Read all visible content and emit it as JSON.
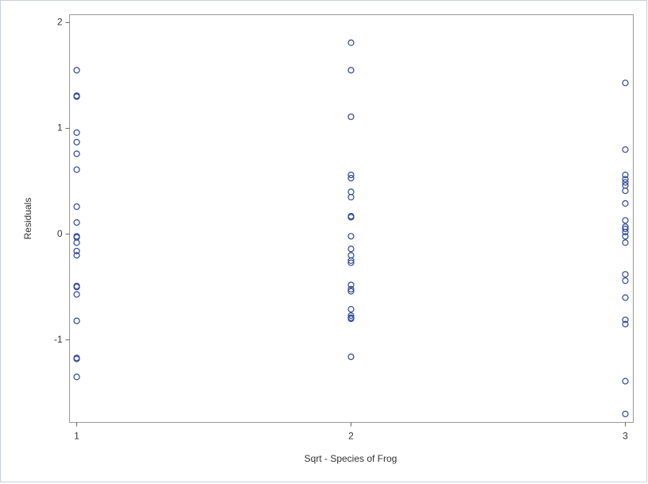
{
  "chart_data": {
    "type": "scatter",
    "x_label": "Sqrt - Species of Frog",
    "y_label": "Residuals",
    "color": "#2d4a9c",
    "x": [
      1,
      1,
      1,
      1,
      1,
      1,
      1,
      1,
      1,
      1,
      1,
      1,
      1,
      1,
      1,
      1,
      1,
      1,
      1,
      1,
      1,
      2,
      2,
      2,
      2,
      2,
      2,
      2,
      2,
      2,
      2,
      2,
      2,
      2,
      2,
      2,
      2,
      2,
      2,
      2,
      2,
      2,
      2,
      3,
      3,
      3,
      3,
      3,
      3,
      3,
      3,
      3,
      3,
      3,
      3,
      3,
      3,
      3,
      3,
      3,
      3,
      3,
      3,
      3
    ],
    "values": [
      1.55,
      1.31,
      1.3,
      0.96,
      0.87,
      0.76,
      0.61,
      0.26,
      0.11,
      -0.02,
      -0.03,
      -0.08,
      -0.16,
      -0.2,
      -0.49,
      -0.5,
      -0.57,
      -0.82,
      -1.17,
      -1.18,
      -1.35,
      1.81,
      1.55,
      1.11,
      0.56,
      0.53,
      0.4,
      0.35,
      0.17,
      0.16,
      -0.02,
      -0.14,
      -0.2,
      -0.25,
      -0.27,
      -0.48,
      -0.52,
      -0.54,
      -0.71,
      -0.77,
      -0.79,
      -0.8,
      -1.16,
      1.43,
      0.8,
      0.56,
      0.52,
      0.49,
      0.46,
      0.41,
      0.29,
      0.13,
      0.07,
      0.05,
      0.02,
      -0.02,
      -0.08,
      -0.38,
      -0.44,
      -0.6,
      -0.81,
      -0.85,
      -1.39,
      -1.7
    ],
    "xlim": [
      0.974,
      3.029
    ],
    "xticks": [
      1,
      2,
      3
    ],
    "ylim": [
      -1.78,
      2.075
    ],
    "yticks": [
      -1,
      0,
      1,
      2
    ],
    "grid": false
  }
}
